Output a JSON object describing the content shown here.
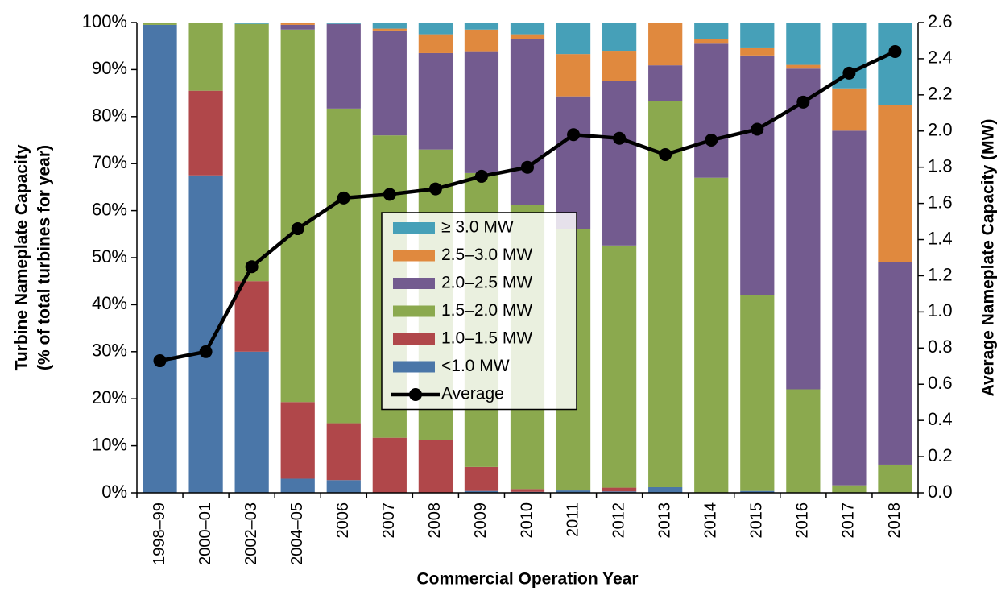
{
  "chart_data": {
    "type": "bar",
    "stacked": true,
    "x_label": "Commercial Operation Year",
    "y_label": [
      "Turbine Nameplate Capacity",
      "(% of total turbines for year)"
    ],
    "y2_label": "Average  Nameplate Capacity (MW)",
    "categories": [
      "1998–99",
      "2000–01",
      "2002–03",
      "2004–05",
      "2006",
      "2007",
      "2008",
      "2009",
      "2010",
      "2011",
      "2012",
      "2013",
      "2014",
      "2015",
      "2016",
      "2017",
      "2018"
    ],
    "series": [
      {
        "name": "<1.0 MW",
        "color": "#4a76a8",
        "values": [
          99.5,
          67.5,
          30,
          3,
          2.7,
          0,
          0,
          0.4,
          0.2,
          0.5,
          0.3,
          1.2,
          0,
          0.4,
          0,
          0,
          0
        ]
      },
      {
        "name": "1.0–1.5 MW",
        "color": "#b0474a",
        "values": [
          0,
          18,
          15,
          16.3,
          12.1,
          11.7,
          11.3,
          5.1,
          0.6,
          0,
          0.8,
          0,
          0,
          0,
          0,
          0,
          0
        ]
      },
      {
        "name": "1.5–2.0 MW",
        "color": "#8ba94e",
        "values": [
          0.5,
          14.5,
          54.7,
          79.2,
          66.9,
          64.3,
          61.7,
          62.5,
          60.5,
          55.5,
          51.5,
          82.1,
          67,
          41.6,
          22,
          1.6,
          6
        ]
      },
      {
        "name": "2.0–2.5 MW",
        "color": "#735b8f",
        "values": [
          0,
          0,
          0,
          1,
          18,
          22.3,
          20.5,
          25.9,
          35.2,
          28.3,
          35,
          7.6,
          28.5,
          51,
          68.2,
          75.4,
          43
        ]
      },
      {
        "name": "2.5–3.0 MW",
        "color": "#e0893e",
        "values": [
          0,
          0,
          0,
          0.5,
          0,
          0.4,
          4,
          4.6,
          1,
          9,
          6.4,
          9.1,
          1,
          1.7,
          0.8,
          9,
          33.5
        ]
      },
      {
        "name": "≥ 3.0 MW",
        "color": "#46a0b8",
        "values": [
          0,
          0,
          0.3,
          0,
          0.3,
          1.3,
          2.5,
          1.5,
          2.5,
          6.7,
          6,
          0,
          3.5,
          5.3,
          9,
          14,
          17.5
        ]
      },
      {
        "name": "Average",
        "type": "line",
        "axis": "y2",
        "color": "#000000",
        "values": [
          0.73,
          0.78,
          1.25,
          1.46,
          1.63,
          1.65,
          1.68,
          1.75,
          1.8,
          1.98,
          1.96,
          1.87,
          1.95,
          2.01,
          2.16,
          2.32,
          2.44
        ]
      }
    ],
    "ylim": [
      0,
      100
    ],
    "yticks": [
      {
        "value": 0,
        "label": "0%"
      },
      {
        "value": 10,
        "label": "10%"
      },
      {
        "value": 20,
        "label": "20%"
      },
      {
        "value": 30,
        "label": "30%"
      },
      {
        "value": 40,
        "label": "40%"
      },
      {
        "value": 50,
        "label": "50%"
      },
      {
        "value": 60,
        "label": "60%"
      },
      {
        "value": 70,
        "label": "70%"
      },
      {
        "value": 80,
        "label": "80%"
      },
      {
        "value": 90,
        "label": "90%"
      },
      {
        "value": 100,
        "label": "100%"
      }
    ],
    "y2lim": [
      0,
      2.6
    ],
    "y2ticks": [
      {
        "value": 0,
        "label": "0.0"
      },
      0.2,
      0.4,
      0.6,
      0.8,
      {
        "value": 1,
        "label": "1.0"
      },
      1.2,
      1.4,
      1.6,
      1.8,
      {
        "value": 2,
        "label": "2.0"
      },
      2.2,
      2.4,
      2.6
    ],
    "grid": false
  }
}
